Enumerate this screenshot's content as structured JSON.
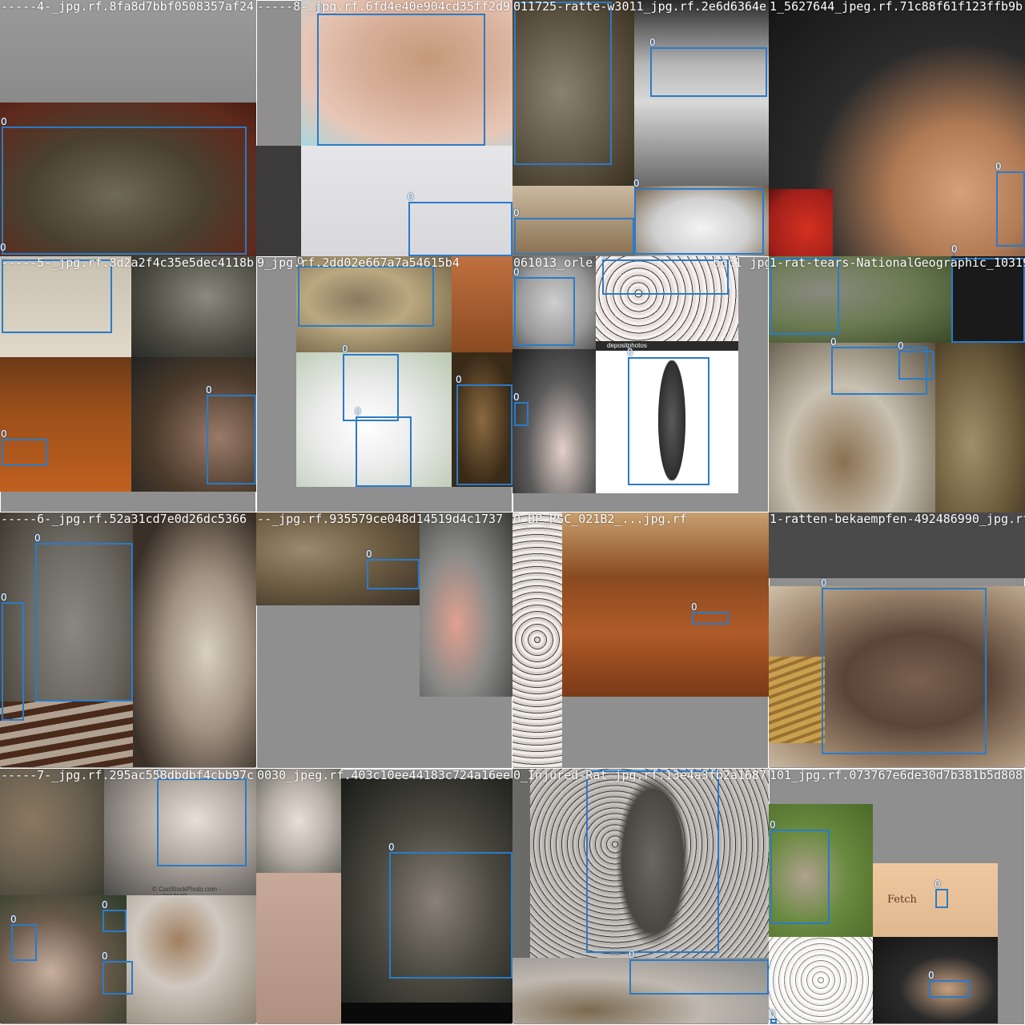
{
  "mosaic": {
    "box_color": "#2a7bc8",
    "tiles": [
      {
        "title": "-----4-_jpg.rf.8fa8d7bbf0508357af24",
        "labels": [
          "0",
          "0"
        ]
      },
      {
        "title": "-----8-_jpg.rf.6fd4e40e904cd35ff2d9",
        "labels": [
          "0",
          "0"
        ]
      },
      {
        "title": "011725-ratte-w3011_jpg.rf.2e6d6364e",
        "labels": [
          "0",
          "0",
          "0",
          "0"
        ]
      },
      {
        "title": "1_5627644_jpeg.rf.71c88f61f123ffb9b",
        "labels": [
          "0",
          "0"
        ]
      },
      {
        "title": "-----5-_jpg.rf.8d2a2f4c35e5dec4118b",
        "labels": [
          "0",
          "0"
        ]
      },
      {
        "title": "9_jpg.rf.2dd02e667a7a54615b4",
        "labels": [
          "0",
          "0",
          "0"
        ]
      },
      {
        "title": "061013_orle",
        "title2": "bcc1",
        "title3": "jpg.rf.0c",
        "labels": [
          "0",
          "0",
          "0"
        ]
      },
      {
        "title": "1-rat-tears-NationalGeographic_10319",
        "labels": [
          "0",
          "0",
          "0"
        ]
      },
      {
        "title": "-----6-_jpg.rf.52a31cd7e0d26dc5366",
        "labels": [
          "0",
          "0"
        ]
      },
      {
        "title": "--_jpg.rf.935579ce048d14519d4c1737",
        "labels": [
          "0"
        ]
      },
      {
        "title": "0_BP_RSC_021B2_...jpg.rf",
        "labels": [
          "0"
        ]
      },
      {
        "title": "1-ratten-bekaempfen-492486990_jpg.rf",
        "labels": [
          "0"
        ]
      },
      {
        "title": "-----7-_jpg.rf.295ac558dbdbf4cbb97c",
        "labels": [
          "0",
          "0",
          "0",
          "0"
        ]
      },
      {
        "title": "0030_jpeg.rf.403c10ee44183c724a16ee",
        "labels": [
          "0"
        ]
      },
      {
        "title": "0_Injured-Rat_jpg.rf.13e4a3fb2a168770",
        "labels": [
          "0",
          "0"
        ]
      },
      {
        "title": "101_jpg.rf.073767e6de30d7b381b5d808",
        "labels": [
          "0",
          "0",
          "0"
        ]
      }
    ],
    "inset_texts": {
      "fetch": "Fetch",
      "canstock": "© CanStockPhoto.com - csp7417630",
      "depositphotos": "depositphotos"
    }
  }
}
